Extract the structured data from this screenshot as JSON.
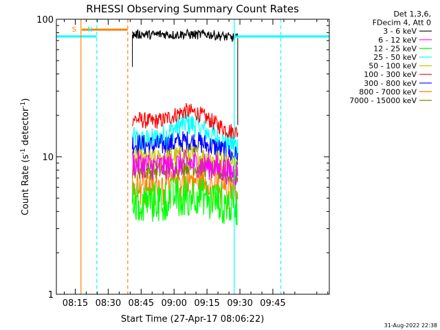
{
  "chart_data": {
    "type": "line",
    "title": "RHESSI Observing Summary Count Rates",
    "xlabel": "Start Time (27-Apr-17 08:06:22)",
    "ylabel_main": "Count Rate (s",
    "ylabel_sup": "-1",
    "ylabel_mid": " detector",
    "ylabel_sup2": "-1",
    "ylabel_end": ")",
    "yscale": "log",
    "ylim": [
      1,
      100
    ],
    "xlim_minutes": [
      6.4,
      130.7
    ],
    "x_ticks": [
      {
        "label": "08:15",
        "minutes": 15
      },
      {
        "label": "08:30",
        "minutes": 30
      },
      {
        "label": "08:45",
        "minutes": 45
      },
      {
        "label": "09:00",
        "minutes": 60
      },
      {
        "label": "09:15",
        "minutes": 75
      },
      {
        "label": "09:30",
        "minutes": 90
      },
      {
        "label": "09:45",
        "minutes": 105
      }
    ],
    "y_ticks": [
      {
        "label": "1",
        "value": 1
      },
      {
        "label": "10",
        "value": 10
      },
      {
        "label": "100",
        "value": 100
      }
    ],
    "legend_header": [
      "Det 1,3,6,",
      "FDecim 4, Att 0"
    ],
    "legend_position": "top-right",
    "series": [
      {
        "name": "3 - 6 keV",
        "color": "#000000",
        "x": [
          41,
          45,
          50,
          55,
          60,
          65,
          70,
          75,
          80,
          85,
          89
        ],
        "y": [
          77,
          78,
          77,
          78,
          77,
          78,
          77,
          78,
          76,
          74,
          73
        ]
      },
      {
        "name": "6 - 12 keV",
        "color": "#ff00ff",
        "x": [
          41,
          45,
          50,
          55,
          60,
          65,
          70,
          75,
          80,
          85,
          89
        ],
        "y": [
          9.0,
          8.8,
          8.6,
          8.5,
          8.7,
          9.0,
          8.9,
          8.6,
          8.3,
          7.8,
          7.5
        ]
      },
      {
        "name": "12 - 25 keV",
        "color": "#00ff00",
        "x": [
          41,
          45,
          50,
          55,
          60,
          65,
          70,
          75,
          80,
          85,
          89
        ],
        "y": [
          5.0,
          4.9,
          4.8,
          4.9,
          5.2,
          5.4,
          5.3,
          5.1,
          4.8,
          4.5,
          4.3
        ]
      },
      {
        "name": "25 - 50 keV",
        "color": "#00ffff",
        "x": [
          41,
          45,
          50,
          55,
          60,
          65,
          70,
          75,
          80,
          85,
          89
        ],
        "y": [
          13.5,
          13.0,
          13.2,
          14.0,
          16.0,
          17.5,
          17.0,
          15.0,
          13.5,
          12.5,
          12.0
        ]
      },
      {
        "name": "50 - 100 keV",
        "color": "#c8c800",
        "x": [
          41,
          45,
          50,
          55,
          60,
          65,
          70,
          75,
          80,
          85,
          89
        ],
        "y": [
          9.8,
          9.5,
          9.4,
          9.6,
          10.0,
          10.4,
          10.2,
          9.8,
          9.4,
          9.0,
          8.7
        ]
      },
      {
        "name": "100 - 300 keV",
        "color": "#ff0000",
        "x": [
          41,
          45,
          50,
          55,
          60,
          65,
          70,
          75,
          80,
          85,
          89
        ],
        "y": [
          19.0,
          18.5,
          18.0,
          18.5,
          20.0,
          21.5,
          21.0,
          19.0,
          17.0,
          15.5,
          15.0
        ]
      },
      {
        "name": "300 - 800 keV",
        "color": "#0000ff",
        "x": [
          41,
          45,
          50,
          55,
          60,
          65,
          70,
          75,
          80,
          85,
          89
        ],
        "y": [
          12.5,
          12.2,
          12.0,
          12.2,
          12.6,
          13.0,
          12.8,
          12.2,
          11.5,
          10.5,
          10.0
        ]
      },
      {
        "name": "800 - 7000 keV",
        "color": "#ff8000",
        "x": [
          41,
          45,
          50,
          55,
          60,
          65,
          70,
          75,
          80,
          85,
          89
        ],
        "y": [
          6.5,
          6.4,
          6.3,
          6.4,
          6.6,
          6.9,
          6.8,
          6.5,
          6.2,
          5.9,
          5.7
        ]
      },
      {
        "name": "7000 - 15000 keV",
        "color": "#808000",
        "x": [
          41,
          45,
          50,
          55,
          60,
          65,
          70,
          75,
          80,
          85,
          89
        ],
        "y": [
          8.2,
          8.0,
          7.9,
          8.0,
          8.3,
          8.6,
          8.5,
          8.2,
          7.8,
          7.4,
          7.2
        ]
      }
    ],
    "annotations": [
      {
        "label": "S",
        "color": "#ff8000",
        "x_minutes": 17.6,
        "kind": "solid-line"
      },
      {
        "label": "N",
        "color": "#00ffff",
        "x_minutes": 24.8,
        "kind": "dashed-line"
      },
      {
        "label": "",
        "color": "#ff8000",
        "x_minutes": 38.9,
        "kind": "dashed-line"
      },
      {
        "label": "",
        "color": "#00ffff",
        "x_minutes": 87.4,
        "kind": "solid-line"
      },
      {
        "label": "",
        "color": "#00ffff",
        "x_minutes": 108.6,
        "kind": "dashed-line"
      }
    ],
    "bars": [
      {
        "color": "#00ffff",
        "x_start": 6.4,
        "x_end": 24.8,
        "y": 75
      },
      {
        "color": "#ff8000",
        "x_start": 18.0,
        "x_end": 38.9,
        "y": 84
      },
      {
        "color": "#00ffff",
        "x_start": 87.4,
        "x_end": 130.7,
        "y": 75
      }
    ],
    "grid": false
  },
  "footer": {
    "timestamp": "31-Aug-2022 22:38"
  }
}
